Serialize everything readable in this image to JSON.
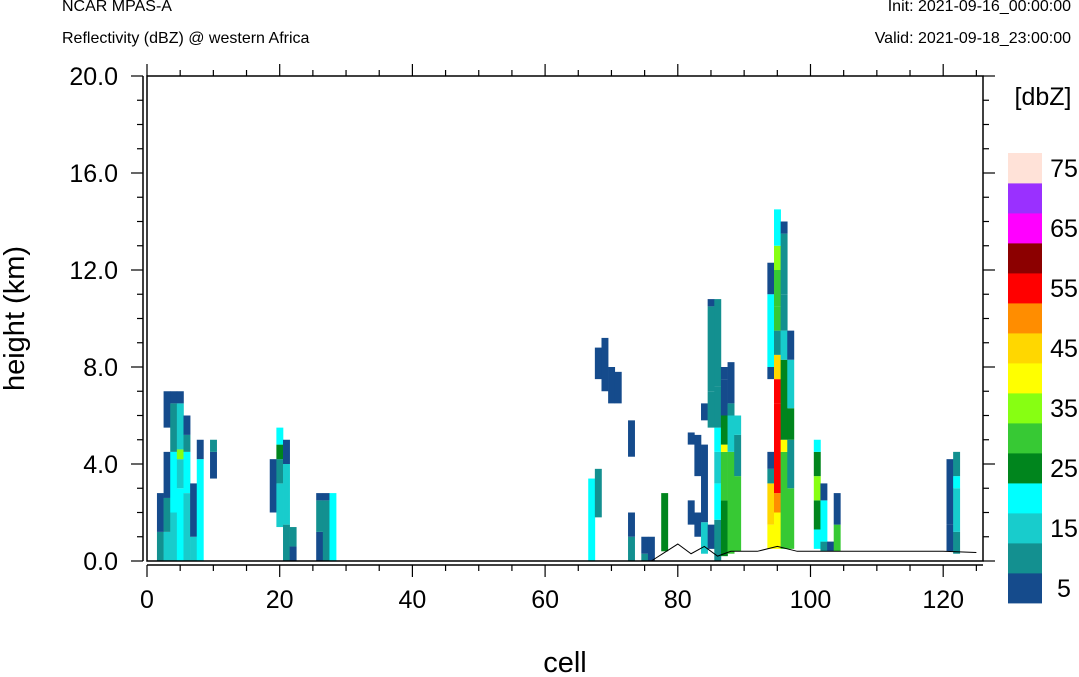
{
  "header": {
    "model": "NCAR MPAS-A",
    "field": "Reflectivity (dBZ) @ western Africa",
    "init": "Init: 2021-09-16_00:00:00",
    "valid": "Valid: 2021-09-18_23:00:00"
  },
  "chart_data": {
    "type": "heatmap",
    "title": "Reflectivity (dBZ) @ western Africa",
    "xlabel": "cell",
    "ylabel": "height (km)",
    "xlim": [
      0,
      126
    ],
    "ylim": [
      0,
      20
    ],
    "x_ticks": [
      "0",
      "20",
      "40",
      "60",
      "80",
      "100",
      "120"
    ],
    "y_ticks": [
      "0.0",
      "4.0",
      "8.0",
      "12.0",
      "16.0",
      "20.0"
    ],
    "colorbar": {
      "unit": "[dbZ]",
      "labels": [
        "5",
        "15",
        "25",
        "35",
        "45",
        "55",
        "65",
        "75"
      ],
      "colors": [
        "#154b8c",
        "#139090",
        "#18cccc",
        "#00ffff",
        "#00851d",
        "#37c934",
        "#87ff12",
        "#ffff00",
        "#ffd700",
        "#ff8d00",
        "#ff0000",
        "#8c0000",
        "#ff00ff",
        "#9a30ff",
        "#ffe2d8"
      ]
    },
    "terrain": [
      [
        76,
        0
      ],
      [
        80,
        0.7
      ],
      [
        82,
        0.3
      ],
      [
        84,
        0.6
      ],
      [
        86,
        0.2
      ],
      [
        88,
        0.4
      ],
      [
        92,
        0.4
      ],
      [
        95,
        0.6
      ],
      [
        98,
        0.4
      ],
      [
        105,
        0.4
      ],
      [
        110,
        0.4
      ],
      [
        120,
        0.4
      ],
      [
        125,
        0.35
      ]
    ],
    "columns": [
      {
        "x": 2,
        "segs": [
          [
            0,
            1.2,
            1
          ],
          [
            1.2,
            2.8,
            0
          ]
        ]
      },
      {
        "x": 3,
        "segs": [
          [
            0,
            1.2,
            2
          ],
          [
            1.2,
            2.6,
            1
          ],
          [
            2.6,
            4.5,
            0
          ],
          [
            5.5,
            7,
            0
          ]
        ]
      },
      {
        "x": 4,
        "segs": [
          [
            0,
            2,
            2
          ],
          [
            2,
            4.5,
            3
          ],
          [
            4.5,
            6.5,
            1
          ],
          [
            6.5,
            7,
            0
          ]
        ]
      },
      {
        "x": 5,
        "segs": [
          [
            0,
            3,
            3
          ],
          [
            3,
            4.2,
            2
          ],
          [
            4.2,
            4.6,
            6
          ],
          [
            4.6,
            6.5,
            2
          ],
          [
            6.5,
            7,
            0
          ]
        ]
      },
      {
        "x": 6,
        "segs": [
          [
            0,
            2.8,
            2
          ],
          [
            2.8,
            4.5,
            3
          ],
          [
            4.5,
            5.2,
            1
          ],
          [
            5.2,
            6,
            0
          ]
        ]
      },
      {
        "x": 7,
        "segs": [
          [
            0,
            1,
            2
          ],
          [
            1,
            3.2,
            0
          ]
        ]
      },
      {
        "x": 8,
        "segs": [
          [
            0,
            4.2,
            3
          ],
          [
            4.2,
            5,
            0
          ]
        ]
      },
      {
        "x": 10,
        "segs": [
          [
            3.4,
            4.5,
            0
          ],
          [
            4.5,
            5,
            1
          ]
        ]
      },
      {
        "x": 19,
        "segs": [
          [
            2,
            4.2,
            0
          ]
        ]
      },
      {
        "x": 20,
        "segs": [
          [
            1.4,
            3.2,
            2
          ],
          [
            3.2,
            4.2,
            1
          ],
          [
            4.2,
            4.8,
            4
          ],
          [
            4.8,
            5.5,
            3
          ]
        ]
      },
      {
        "x": 21,
        "segs": [
          [
            0,
            1.5,
            1
          ],
          [
            1.5,
            4,
            2
          ],
          [
            4,
            5,
            0
          ]
        ]
      },
      {
        "x": 22,
        "segs": [
          [
            0,
            0.6,
            0
          ],
          [
            0.6,
            1.4,
            1
          ]
        ]
      },
      {
        "x": 26,
        "segs": [
          [
            0,
            1.2,
            0
          ],
          [
            1.2,
            2.5,
            1
          ],
          [
            2.5,
            2.8,
            0
          ]
        ]
      },
      {
        "x": 27,
        "segs": [
          [
            0,
            2.5,
            1
          ],
          [
            2.5,
            2.8,
            0
          ]
        ]
      },
      {
        "x": 28,
        "segs": [
          [
            0,
            2.8,
            3
          ]
        ]
      },
      {
        "x": 67,
        "segs": [
          [
            0,
            3.4,
            3
          ]
        ]
      },
      {
        "x": 68,
        "segs": [
          [
            7.5,
            8.8,
            0
          ]
        ]
      },
      {
        "x": 69,
        "segs": [
          [
            7,
            9.2,
            0
          ]
        ]
      },
      {
        "x": 70,
        "segs": [
          [
            6.5,
            8,
            0
          ]
        ]
      },
      {
        "x": 71,
        "segs": [
          [
            6.5,
            7.8,
            0
          ]
        ]
      },
      {
        "x": 68,
        "segs": [
          [
            1.8,
            3.8,
            1
          ]
        ]
      },
      {
        "x": 73,
        "segs": [
          [
            0,
            1,
            1
          ],
          [
            1,
            2,
            0
          ],
          [
            4.3,
            5.8,
            0
          ]
        ]
      },
      {
        "x": 75,
        "segs": [
          [
            0,
            0.3,
            1
          ],
          [
            0.3,
            1,
            0
          ]
        ]
      },
      {
        "x": 76,
        "segs": [
          [
            0,
            1,
            0
          ]
        ]
      },
      {
        "x": 78,
        "segs": [
          [
            0.4,
            2.8,
            4
          ]
        ]
      },
      {
        "x": 82,
        "segs": [
          [
            1.5,
            2.5,
            0
          ],
          [
            4.8,
            5.3,
            0
          ]
        ]
      },
      {
        "x": 83,
        "segs": [
          [
            1,
            2,
            0
          ],
          [
            3.5,
            5.2,
            0
          ]
        ]
      },
      {
        "x": 84,
        "segs": [
          [
            0.3,
            1.6,
            2
          ],
          [
            1.6,
            4.8,
            0
          ],
          [
            5.8,
            6.5,
            0
          ]
        ]
      },
      {
        "x": 85,
        "segs": [
          [
            0.5,
            1.5,
            0
          ],
          [
            5.5,
            7,
            1
          ],
          [
            7,
            10.5,
            1
          ],
          [
            10.5,
            10.8,
            0
          ]
        ]
      },
      {
        "x": 86,
        "segs": [
          [
            0,
            1.7,
            1
          ],
          [
            1.7,
            3.2,
            3
          ],
          [
            3.2,
            4.5,
            2
          ],
          [
            4.5,
            5.5,
            3
          ],
          [
            5.5,
            7.2,
            1
          ],
          [
            7.2,
            10.8,
            1
          ]
        ]
      },
      {
        "x": 87,
        "segs": [
          [
            0.2,
            2.5,
            4
          ],
          [
            2.5,
            4.5,
            5
          ],
          [
            4.5,
            4.8,
            7
          ],
          [
            4.8,
            6,
            4
          ],
          [
            6,
            7.5,
            0
          ],
          [
            7.5,
            8,
            0
          ]
        ]
      },
      {
        "x": 88,
        "segs": [
          [
            0.3,
            4.5,
            5
          ],
          [
            4.5,
            6,
            2
          ],
          [
            6,
            6.5,
            1
          ],
          [
            6.5,
            8.2,
            0
          ]
        ]
      },
      {
        "x": 89,
        "segs": [
          [
            0.4,
            3.5,
            5
          ],
          [
            3.5,
            5.2,
            1
          ],
          [
            5.2,
            6,
            2
          ]
        ]
      },
      {
        "x": 94,
        "segs": [
          [
            0.5,
            1.5,
            7
          ],
          [
            1.5,
            3.2,
            8
          ],
          [
            3.2,
            3.8,
            1
          ],
          [
            3.8,
            4.5,
            0
          ],
          [
            7.5,
            8,
            0
          ],
          [
            8,
            11,
            3
          ],
          [
            11,
            12.3,
            0
          ]
        ]
      },
      {
        "x": 95,
        "segs": [
          [
            0.5,
            2,
            7
          ],
          [
            2,
            2.8,
            9
          ],
          [
            2.8,
            6.5,
            10
          ],
          [
            6.5,
            7.5,
            10
          ],
          [
            7.5,
            8.5,
            8
          ],
          [
            8.5,
            9.5,
            1
          ],
          [
            9.5,
            10.5,
            5
          ],
          [
            10.5,
            12,
            5
          ],
          [
            12,
            13,
            6
          ],
          [
            13,
            14.5,
            3
          ]
        ]
      },
      {
        "x": 96,
        "segs": [
          [
            0.5,
            4.5,
            5
          ],
          [
            4.5,
            5,
            7
          ],
          [
            5,
            8.3,
            4
          ],
          [
            8.3,
            9.5,
            2
          ],
          [
            9.5,
            11,
            1
          ],
          [
            11,
            13.5,
            1
          ],
          [
            13.5,
            14,
            0
          ]
        ]
      },
      {
        "x": 97,
        "segs": [
          [
            0.5,
            3,
            5
          ],
          [
            3,
            5,
            1
          ],
          [
            5,
            6.3,
            4
          ],
          [
            6.3,
            8.3,
            2
          ],
          [
            8.3,
            9.5,
            0
          ]
        ]
      },
      {
        "x": 101,
        "segs": [
          [
            0.5,
            1.3,
            3
          ],
          [
            1.3,
            2.5,
            4
          ],
          [
            2.5,
            3.5,
            6
          ],
          [
            3.5,
            4.5,
            4
          ],
          [
            4.5,
            5,
            3
          ]
        ]
      },
      {
        "x": 102,
        "segs": [
          [
            0.4,
            0.8,
            1
          ],
          [
            0.8,
            2.5,
            3
          ],
          [
            2.5,
            3.2,
            0
          ]
        ]
      },
      {
        "x": 103,
        "segs": [
          [
            0.4,
            0.8,
            0
          ]
        ]
      },
      {
        "x": 104,
        "segs": [
          [
            0.4,
            1.5,
            5
          ],
          [
            1.5,
            2.8,
            0
          ]
        ]
      },
      {
        "x": 121,
        "segs": [
          [
            0.4,
            1.5,
            0
          ],
          [
            1.5,
            4.2,
            0
          ]
        ]
      },
      {
        "x": 122,
        "segs": [
          [
            0.3,
            1.2,
            1
          ],
          [
            1.2,
            3,
            2
          ],
          [
            3,
            3.5,
            3
          ],
          [
            3.5,
            4.5,
            1
          ]
        ]
      }
    ]
  }
}
